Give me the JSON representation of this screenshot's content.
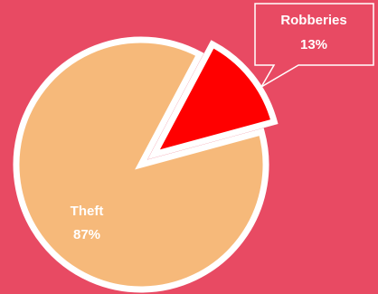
{
  "chart_data": {
    "type": "pie",
    "slices": [
      {
        "label": "Theft",
        "value": 87,
        "percent_label": "87%",
        "color": "#f6b97a"
      },
      {
        "label": "Robberies",
        "value": 13,
        "percent_label": "13%",
        "color": "#ff0000",
        "exploded": true
      }
    ],
    "background": "#e84a63",
    "slice_border_color": "#ffffff",
    "legend": "none"
  }
}
